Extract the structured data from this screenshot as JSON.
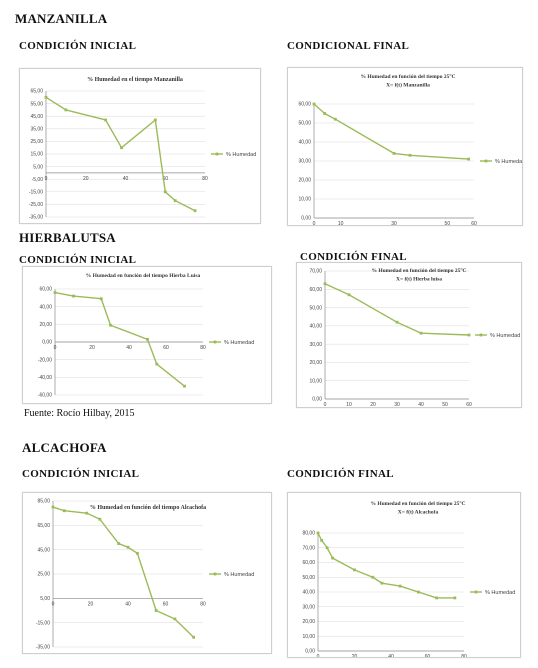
{
  "sections": {
    "manzanilla": {
      "title": "MANZANILLA",
      "initial": "CONDICIÓN INICIAL",
      "final": "CONDICIONAL FINAL"
    },
    "hierbalutsa": {
      "title": "HIERBALUTSA",
      "initial": "CONDICIÓN INICIAL",
      "final": "CONDICIÓN FINAL"
    },
    "alcachofa": {
      "title": "ALCACHOFA",
      "initial": "CONDICIÓN INICIAL",
      "final": "CONDICIÓN FINAL"
    }
  },
  "source": "Fuente: Rocío Hilbay, 2015",
  "colors": {
    "series": "#9bbb59",
    "axis": "#8c8c8c",
    "grid": "#d9d9d9"
  },
  "chart_data": [
    {
      "type": "line",
      "title": "% Humedad en el tiempo Manzanilla",
      "subtitle": "",
      "legend": "% Humedad",
      "legend_position": "right",
      "xlim": [
        0,
        80
      ],
      "xticks": [
        0,
        20,
        40,
        60,
        80
      ],
      "ylim": [
        -35,
        65
      ],
      "yticks": [
        65,
        55,
        45,
        35,
        25,
        15,
        5,
        -5,
        -15,
        -25,
        -35
      ],
      "ytick_labels": [
        "65,00",
        "55,00",
        "45,00",
        "35,00",
        "25,00",
        "15,00",
        "5,00",
        "-5,00",
        "-15,00",
        "-25,00",
        "-35,00"
      ],
      "xaxis_at": 0,
      "x": [
        0,
        10,
        30,
        38,
        55,
        60,
        65,
        75
      ],
      "y": [
        60,
        50,
        42,
        20,
        42,
        -15,
        -22,
        -30
      ]
    },
    {
      "type": "line",
      "title": "% Humedad en función del tiempo 25°C",
      "subtitle": "X= f(t) Manzanilla",
      "legend": "% Humeda",
      "legend_position": "right",
      "xlim": [
        0,
        60
      ],
      "xticks": [
        0,
        10,
        20,
        30,
        40,
        50,
        60
      ],
      "xtick_labels": [
        "0",
        "10",
        "",
        "30",
        "",
        "50",
        "60"
      ],
      "ylim": [
        0,
        60
      ],
      "yticks": [
        60,
        50,
        40,
        30,
        20,
        10,
        0
      ],
      "ytick_labels": [
        "60,00",
        "50,00",
        "40,00",
        "30,00",
        "20,00",
        "10,00",
        "0,00"
      ],
      "xaxis_at": 0,
      "x": [
        0,
        4,
        8,
        30,
        36,
        58
      ],
      "y": [
        60,
        55,
        52,
        34,
        33,
        31
      ]
    },
    {
      "type": "line",
      "title": "% Humedad en función del tiempo Hierba Luisa",
      "subtitle": "",
      "legend": "% Humedad",
      "legend_position": "right",
      "xlim": [
        0,
        80
      ],
      "xticks": [
        0,
        20,
        40,
        60,
        80
      ],
      "ylim": [
        -60,
        60
      ],
      "yticks": [
        60,
        40,
        20,
        0,
        -20,
        -40,
        -60
      ],
      "ytick_labels": [
        "60,00",
        "40,00",
        "20,00",
        "0,00",
        "-20,00",
        "-40,00",
        "-60,00"
      ],
      "xaxis_at": 0,
      "x": [
        0,
        10,
        25,
        30,
        50,
        55,
        70
      ],
      "y": [
        56,
        52,
        49,
        19,
        3,
        -25,
        -50
      ]
    },
    {
      "type": "line",
      "title": "% Humedad en función del tiempo 25°C",
      "subtitle": "X= f(t) Hierba luisa",
      "legend": "% Humedad",
      "legend_position": "right",
      "xlim": [
        0,
        60
      ],
      "xticks": [
        0,
        10,
        20,
        30,
        40,
        50,
        60
      ],
      "ylim": [
        0,
        70
      ],
      "yticks": [
        70,
        60,
        50,
        40,
        30,
        20,
        10,
        0
      ],
      "ytick_labels": [
        "70,00",
        "60,00",
        "50,00",
        "40,00",
        "30,00",
        "20,00",
        "10,00",
        "0,00"
      ],
      "xaxis_at": 0,
      "x": [
        0,
        10,
        30,
        40,
        60
      ],
      "y": [
        63,
        57,
        42,
        36,
        35
      ]
    },
    {
      "type": "line",
      "title": "% Humedad en función del tiempo Alcachofa",
      "subtitle": "",
      "legend": "% Humedad",
      "legend_position": "right",
      "xlim": [
        0,
        80
      ],
      "xticks": [
        0,
        20,
        40,
        60,
        80
      ],
      "ylim": [
        -35,
        85
      ],
      "yticks": [
        85,
        65,
        45,
        25,
        5,
        -15,
        -35
      ],
      "ytick_labels": [
        "85,00",
        "65,00",
        "45,00",
        "25,00",
        "5,00",
        "-15,00",
        "-35,00"
      ],
      "xaxis_at": 5,
      "x": [
        0,
        6,
        18,
        25,
        35,
        40,
        45,
        55,
        65,
        75
      ],
      "y": [
        80,
        77,
        75,
        70,
        50,
        47,
        42,
        -5,
        -12,
        -27
      ]
    },
    {
      "type": "line",
      "title": "% Humedad en función del tiempo 25°C",
      "subtitle": "X= f(t) Alcachofa",
      "legend": "% Humedad",
      "legend_position": "right",
      "xlim": [
        0,
        80
      ],
      "xticks": [
        0,
        20,
        40,
        60,
        80
      ],
      "ylim": [
        0,
        80
      ],
      "yticks": [
        80,
        70,
        60,
        50,
        40,
        30,
        20,
        10,
        0
      ],
      "ytick_labels": [
        "80,00",
        "70,00",
        "60,00",
        "50,00",
        "40,00",
        "30,00",
        "20,00",
        "10,00",
        "0,00"
      ],
      "xaxis_at": 0,
      "x": [
        0,
        2,
        5,
        8,
        20,
        30,
        35,
        45,
        55,
        65,
        75
      ],
      "y": [
        80,
        75,
        70,
        63,
        55,
        50,
        46,
        44,
        40,
        36,
        36
      ]
    }
  ]
}
